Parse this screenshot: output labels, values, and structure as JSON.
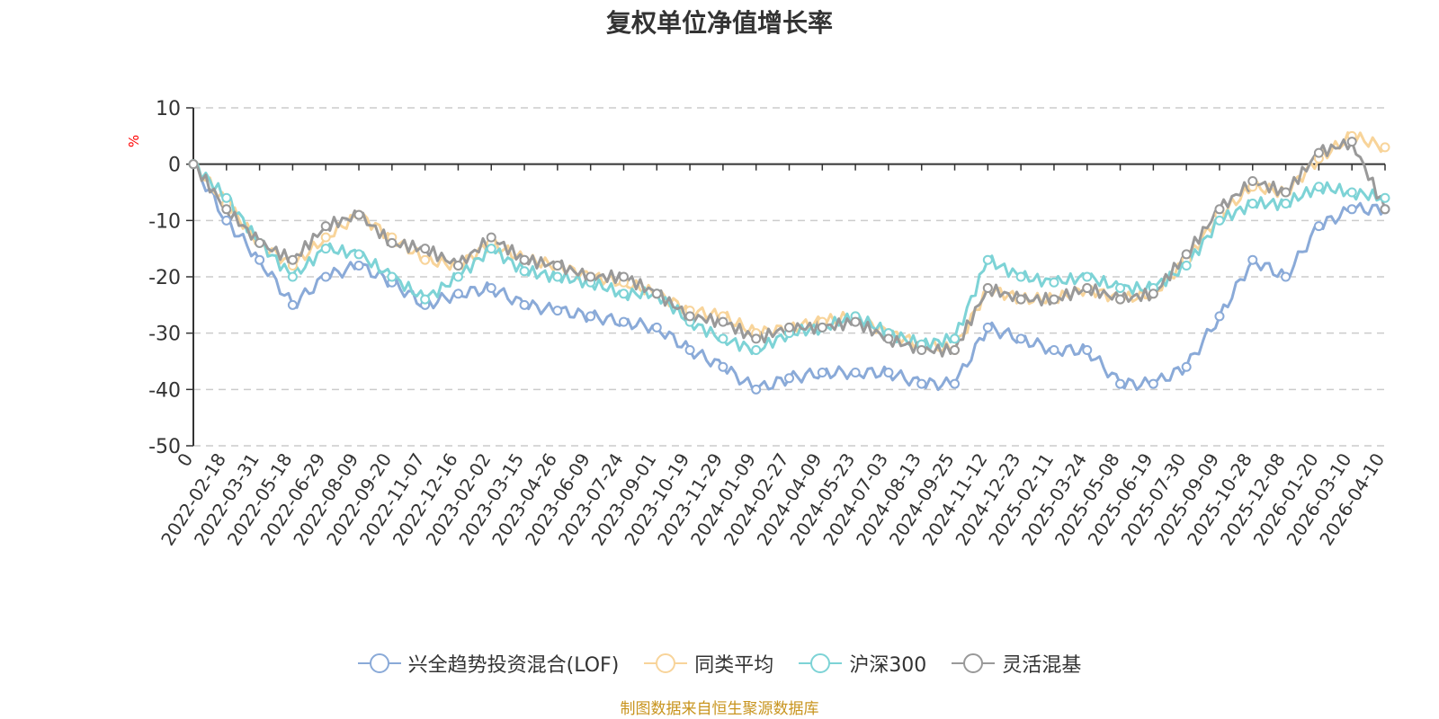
{
  "chart_data": {
    "type": "line",
    "title": "复权单位净值增长率",
    "ylabel": "%",
    "xlabel": "",
    "ylim": [
      -50,
      10
    ],
    "yticks": [
      10,
      0,
      -10,
      -20,
      -30,
      -40,
      -50
    ],
    "grid": true,
    "legend_position": "bottom",
    "categories": [
      "0",
      "2022-02-18",
      "2022-03-31",
      "2022-05-18",
      "2022-06-29",
      "2022-08-09",
      "2022-09-20",
      "2022-11-07",
      "2022-12-16",
      "2023-02-02",
      "2023-03-15",
      "2023-04-26",
      "2023-06-09",
      "2023-07-24",
      "2023-09-01",
      "2023-10-19",
      "2023-11-29",
      "2024-01-09",
      "2024-02-27",
      "2024-04-09",
      "2024-05-23",
      "2024-07-03",
      "2024-08-13",
      "2024-09-25",
      "2024-11-12",
      "2024-12-23",
      "2025-02-11",
      "2025-03-24",
      "2025-05-08",
      "2025-06-19",
      "2025-07-30",
      "2025-09-09",
      "2025-10-28",
      "2025-12-08",
      "2026-01-20",
      "2026-03-10",
      "2026-04-10"
    ],
    "series": [
      {
        "name": "兴全趋势投资混合(LOF)",
        "color": "#8aaad8",
        "values": [
          0,
          -10,
          -17,
          -25,
          -20,
          -18,
          -21,
          -25,
          -23,
          -22,
          -25,
          -26,
          -27,
          -28,
          -29,
          -33,
          -36,
          -40,
          -38,
          -37,
          -37,
          -37,
          -39,
          -39,
          -29,
          -31,
          -33,
          -33,
          -39,
          -39,
          -36,
          -27,
          -17,
          -20,
          -11,
          -8,
          -8
        ]
      },
      {
        "name": "同类平均",
        "color": "#f8d49a",
        "values": [
          0,
          -7,
          -14,
          -18,
          -13,
          -9,
          -13,
          -17,
          -18,
          -14,
          -17,
          -18,
          -20,
          -21,
          -23,
          -26,
          -27,
          -30,
          -29,
          -28,
          -27,
          -30,
          -32,
          -33,
          -22,
          -24,
          -24,
          -22,
          -24,
          -23,
          -17,
          -9,
          -4,
          -5,
          1,
          5,
          3
        ]
      },
      {
        "name": "沪深300",
        "color": "#7dd3d6",
        "values": [
          0,
          -6,
          -14,
          -20,
          -15,
          -16,
          -20,
          -24,
          -20,
          -15,
          -19,
          -20,
          -21,
          -23,
          -23,
          -28,
          -31,
          -33,
          -30,
          -29,
          -27,
          -30,
          -32,
          -31,
          -17,
          -20,
          -21,
          -20,
          -22,
          -22,
          -18,
          -10,
          -7,
          -7,
          -4,
          -5,
          -6
        ]
      },
      {
        "name": "灵活混基",
        "color": "#999999",
        "values": [
          0,
          -8,
          -14,
          -17,
          -11,
          -9,
          -14,
          -15,
          -18,
          -13,
          -17,
          -18,
          -20,
          -20,
          -23,
          -27,
          -28,
          -31,
          -29,
          -29,
          -28,
          -31,
          -33,
          -33,
          -22,
          -24,
          -24,
          -22,
          -24,
          -23,
          -16,
          -8,
          -3,
          -5,
          2,
          4,
          -8
        ]
      }
    ]
  },
  "source_note": "制图数据来自恒生聚源数据库"
}
